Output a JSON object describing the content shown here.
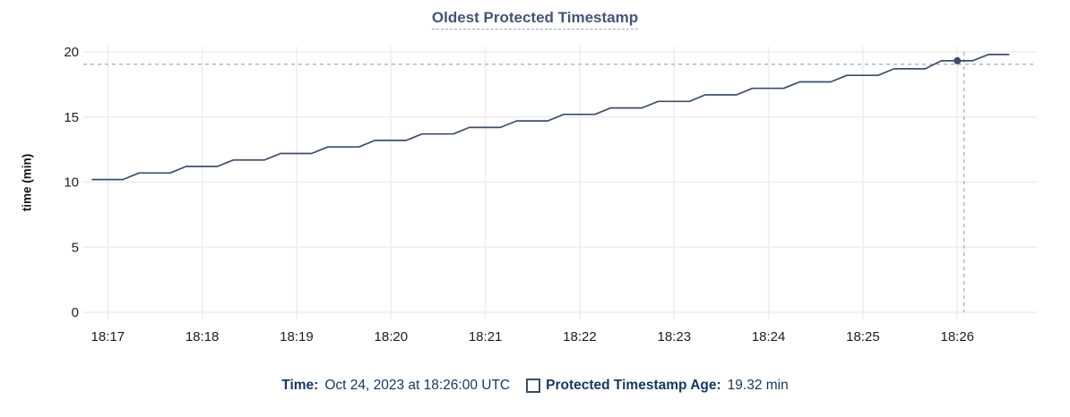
{
  "title": "Oldest Protected Timestamp",
  "legend": {
    "time_label": "Time:",
    "time_value": "Oct 24, 2023 at 18:26:00 UTC",
    "series_label": "Protected Timestamp Age:",
    "series_value": "19.32 min",
    "checkbox_icon": "checkbox-unchecked-icon"
  },
  "colors": {
    "title_text": "#445572",
    "title_underline": "#9aa5b8",
    "legend_text": "#16375e",
    "checkbox_border": "#3a4d66",
    "line": "#3e4e66",
    "grid": "#ededf0",
    "crosshair": "#a5b3c2",
    "tick_text": "#1b1d20"
  },
  "chart_data": {
    "type": "line",
    "title": "Oldest Protected Timestamp",
    "xlabel": "",
    "ylabel": "time (min)",
    "ylim": [
      0,
      20
    ],
    "y_ticks": [
      0,
      5,
      10,
      15,
      20
    ],
    "x_ticks": [
      "18:17",
      "18:18",
      "18:19",
      "18:20",
      "18:21",
      "18:22",
      "18:23",
      "18:24",
      "18:25",
      "18:26"
    ],
    "x_unit": "minutes after 18:17",
    "grid": true,
    "legend_position": "bottom",
    "series": [
      {
        "name": "Protected Timestamp Age",
        "color": "#3e4e66",
        "points": [
          [
            -0.17,
            10.2
          ],
          [
            0.16,
            10.2
          ],
          [
            0.33,
            10.7
          ],
          [
            0.66,
            10.7
          ],
          [
            0.83,
            11.2
          ],
          [
            1.16,
            11.2
          ],
          [
            1.33,
            11.7
          ],
          [
            1.66,
            11.7
          ],
          [
            1.83,
            12.2
          ],
          [
            2.16,
            12.2
          ],
          [
            2.33,
            12.7
          ],
          [
            2.66,
            12.7
          ],
          [
            2.83,
            13.2
          ],
          [
            3.16,
            13.2
          ],
          [
            3.33,
            13.7
          ],
          [
            3.66,
            13.7
          ],
          [
            3.83,
            14.2
          ],
          [
            4.16,
            14.2
          ],
          [
            4.33,
            14.7
          ],
          [
            4.66,
            14.7
          ],
          [
            4.83,
            15.2
          ],
          [
            5.16,
            15.2
          ],
          [
            5.33,
            15.7
          ],
          [
            5.66,
            15.7
          ],
          [
            5.83,
            16.2
          ],
          [
            6.16,
            16.2
          ],
          [
            6.33,
            16.7
          ],
          [
            6.66,
            16.7
          ],
          [
            6.83,
            17.2
          ],
          [
            7.16,
            17.2
          ],
          [
            7.33,
            17.7
          ],
          [
            7.66,
            17.7
          ],
          [
            7.83,
            18.2
          ],
          [
            8.16,
            18.2
          ],
          [
            8.33,
            18.7
          ],
          [
            8.66,
            18.7
          ],
          [
            8.83,
            19.32
          ],
          [
            9.16,
            19.32
          ],
          [
            9.33,
            19.8
          ],
          [
            9.55,
            19.8
          ]
        ]
      }
    ],
    "hover_point": {
      "x": 9.0,
      "y": 19.32,
      "time": "18:26:00",
      "value": "19.32 min"
    },
    "crosshair": {
      "x": 9.07,
      "y": 19.05
    }
  }
}
